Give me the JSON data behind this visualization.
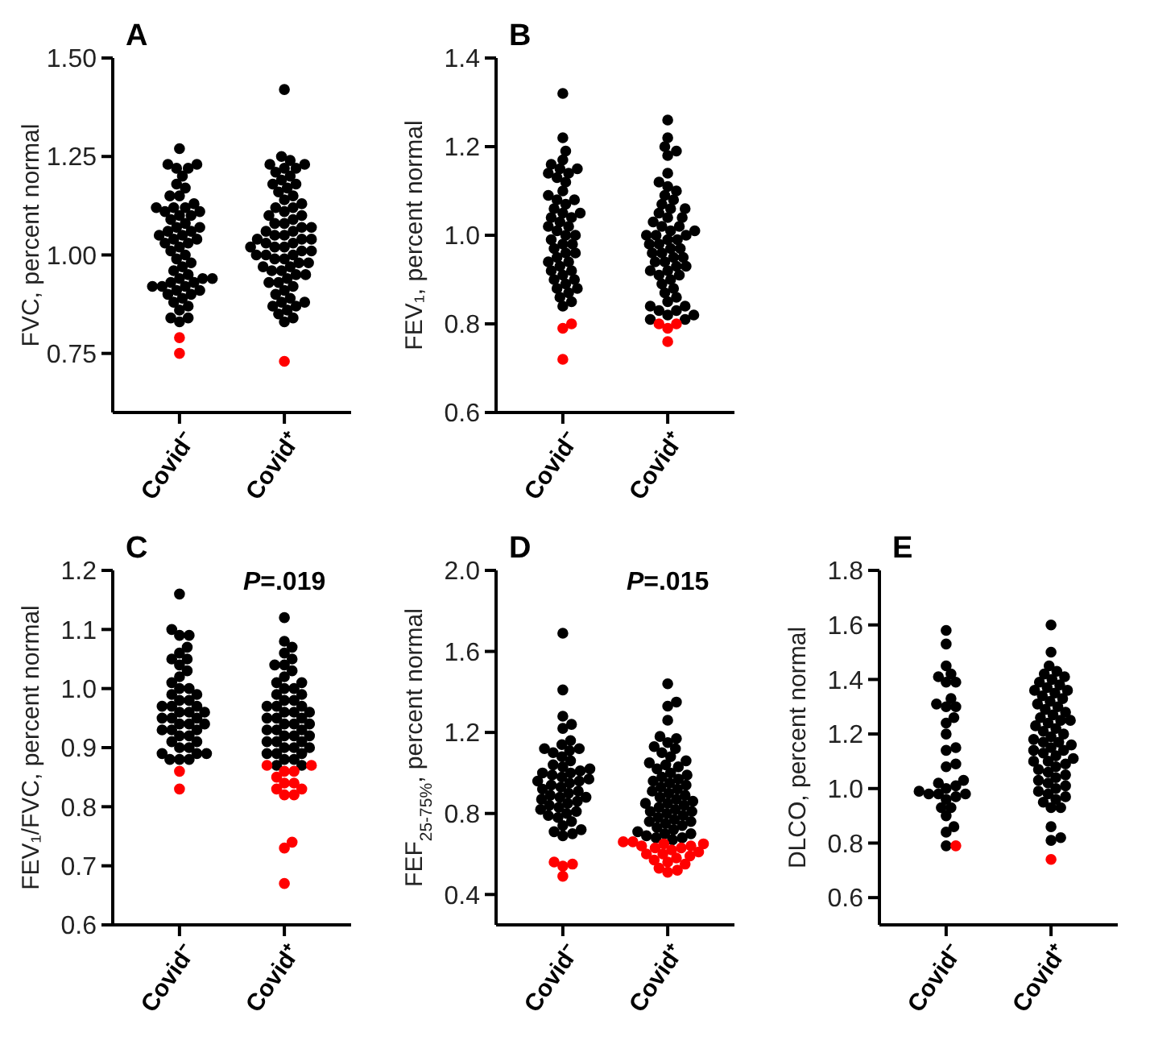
{
  "chart_data": [
    {
      "type": "scatter",
      "title": "A",
      "ylabel": "FVC, percent normal",
      "categories": [
        "Covid⁻",
        "Covid⁺"
      ],
      "ylim": [
        0.6,
        1.5
      ],
      "yticks": [
        {
          "value": 0.75,
          "label": "0.75"
        },
        {
          "value": 1,
          "label": "1.00"
        },
        {
          "value": 1.25,
          "label": "1.25"
        },
        {
          "value": 1.5,
          "label": "1.50"
        }
      ],
      "marker": "circle",
      "series": [
        {
          "color": "#000000",
          "x": [
            "Covid⁻",
            "Covid⁻",
            "Covid⁻",
            "Covid⁻",
            "Covid⁻",
            "Covid⁻",
            "Covid⁻",
            "Covid⁻",
            "Covid⁻",
            "Covid⁻",
            "Covid⁻",
            "Covid⁻",
            "Covid⁻",
            "Covid⁻",
            "Covid⁻",
            "Covid⁻",
            "Covid⁻",
            "Covid⁻",
            "Covid⁻",
            "Covid⁻",
            "Covid⁻",
            "Covid⁻",
            "Covid⁻",
            "Covid⁻",
            "Covid⁻",
            "Covid⁻",
            "Covid⁻",
            "Covid⁻",
            "Covid⁻",
            "Covid⁻",
            "Covid⁻",
            "Covid⁻",
            "Covid⁻",
            "Covid⁻",
            "Covid⁻",
            "Covid⁻",
            "Covid⁻",
            "Covid⁻",
            "Covid⁻",
            "Covid⁻",
            "Covid⁻",
            "Covid⁻",
            "Covid⁻",
            "Covid⁻",
            "Covid⁻",
            "Covid⁻",
            "Covid⁻",
            "Covid⁻",
            "Covid⁻",
            "Covid⁻",
            "Covid⁻",
            "Covid⁻",
            "Covid⁻",
            "Covid⁻",
            "Covid⁻",
            "Covid⁻",
            "Covid⁻"
          ],
          "values": [
            1.27,
            1.23,
            1.23,
            1.22,
            1.22,
            1.2,
            1.18,
            1.17,
            1.15,
            1.15,
            1.13,
            1.12,
            1.12,
            1.12,
            1.11,
            1.11,
            1.1,
            1.1,
            1.09,
            1.08,
            1.07,
            1.07,
            1.06,
            1.06,
            1.05,
            1.05,
            1.04,
            1.04,
            1.03,
            1.03,
            1.02,
            1.01,
            1.0,
            0.99,
            0.98,
            0.97,
            0.96,
            0.95,
            0.94,
            0.94,
            0.94,
            0.93,
            0.93,
            0.92,
            0.92,
            0.92,
            0.91,
            0.91,
            0.9,
            0.9,
            0.89,
            0.88,
            0.87,
            0.86,
            0.84,
            0.84,
            0.83
          ]
        },
        {
          "color": "#000000",
          "x": [
            "Covid⁺",
            "Covid⁺",
            "Covid⁺",
            "Covid⁺",
            "Covid⁺",
            "Covid⁺",
            "Covid⁺",
            "Covid⁺",
            "Covid⁺",
            "Covid⁺",
            "Covid⁺",
            "Covid⁺",
            "Covid⁺",
            "Covid⁺",
            "Covid⁺",
            "Covid⁺",
            "Covid⁺",
            "Covid⁺",
            "Covid⁺",
            "Covid⁺",
            "Covid⁺",
            "Covid⁺",
            "Covid⁺",
            "Covid⁺",
            "Covid⁺",
            "Covid⁺",
            "Covid⁺",
            "Covid⁺",
            "Covid⁺",
            "Covid⁺",
            "Covid⁺",
            "Covid⁺",
            "Covid⁺",
            "Covid⁺",
            "Covid⁺",
            "Covid⁺",
            "Covid⁺",
            "Covid⁺",
            "Covid⁺",
            "Covid⁺",
            "Covid⁺",
            "Covid⁺",
            "Covid⁺",
            "Covid⁺",
            "Covid⁺",
            "Covid⁺",
            "Covid⁺",
            "Covid⁺",
            "Covid⁺",
            "Covid⁺",
            "Covid⁺",
            "Covid⁺",
            "Covid⁺",
            "Covid⁺",
            "Covid⁺",
            "Covid⁺",
            "Covid⁺",
            "Covid⁺",
            "Covid⁺",
            "Covid⁺",
            "Covid⁺",
            "Covid⁺",
            "Covid⁺",
            "Covid⁺",
            "Covid⁺",
            "Covid⁺",
            "Covid⁺",
            "Covid⁺",
            "Covid⁺"
          ],
          "values": [
            1.42,
            1.25,
            1.24,
            1.23,
            1.23,
            1.22,
            1.22,
            1.21,
            1.2,
            1.19,
            1.18,
            1.18,
            1.17,
            1.16,
            1.15,
            1.14,
            1.13,
            1.12,
            1.12,
            1.11,
            1.1,
            1.1,
            1.09,
            1.08,
            1.08,
            1.07,
            1.07,
            1.06,
            1.06,
            1.05,
            1.05,
            1.04,
            1.04,
            1.04,
            1.03,
            1.03,
            1.02,
            1.02,
            1.02,
            1.01,
            1.01,
            1.0,
            1.0,
            1.0,
            0.99,
            0.99,
            0.98,
            0.98,
            0.97,
            0.97,
            0.96,
            0.96,
            0.95,
            0.95,
            0.94,
            0.93,
            0.93,
            0.92,
            0.91,
            0.9,
            0.89,
            0.88,
            0.88,
            0.87,
            0.87,
            0.86,
            0.85,
            0.84,
            0.83
          ]
        },
        {
          "color": "#ff0000",
          "x": [
            "Covid⁻",
            "Covid⁻",
            "Covid⁺"
          ],
          "values": [
            0.79,
            0.75,
            0.73
          ]
        }
      ]
    },
    {
      "type": "scatter",
      "title": "B",
      "ylabel": "FEV₁, percent normal",
      "categories": [
        "Covid⁻",
        "Covid⁺"
      ],
      "ylim": [
        0.6,
        1.4
      ],
      "yticks": [
        {
          "value": 0.6,
          "label": "0.6"
        },
        {
          "value": 0.8,
          "label": "0.8"
        },
        {
          "value": 1,
          "label": "1.0"
        },
        {
          "value": 1.2,
          "label": "1.2"
        },
        {
          "value": 1.4,
          "label": "1.4"
        }
      ],
      "marker": "circle",
      "series": [
        {
          "color": "#000000",
          "x": [
            "Covid⁻",
            "Covid⁻",
            "Covid⁻",
            "Covid⁻",
            "Covid⁻",
            "Covid⁻",
            "Covid⁻",
            "Covid⁻",
            "Covid⁻",
            "Covid⁻",
            "Covid⁻",
            "Covid⁻",
            "Covid⁻",
            "Covid⁻",
            "Covid⁻",
            "Covid⁻",
            "Covid⁻",
            "Covid⁻",
            "Covid⁻",
            "Covid⁻",
            "Covid⁻",
            "Covid⁻",
            "Covid⁻",
            "Covid⁻",
            "Covid⁻",
            "Covid⁻",
            "Covid⁻",
            "Covid⁻",
            "Covid⁻",
            "Covid⁻",
            "Covid⁻",
            "Covid⁻",
            "Covid⁻",
            "Covid⁻",
            "Covid⁻",
            "Covid⁻",
            "Covid⁻",
            "Covid⁻",
            "Covid⁻",
            "Covid⁻",
            "Covid⁻",
            "Covid⁻",
            "Covid⁻",
            "Covid⁻",
            "Covid⁻",
            "Covid⁻",
            "Covid⁻",
            "Covid⁻",
            "Covid⁻"
          ],
          "values": [
            1.32,
            1.22,
            1.19,
            1.17,
            1.16,
            1.15,
            1.15,
            1.14,
            1.14,
            1.13,
            1.12,
            1.1,
            1.09,
            1.08,
            1.08,
            1.07,
            1.06,
            1.05,
            1.05,
            1.04,
            1.04,
            1.03,
            1.02,
            1.02,
            1.01,
            1.0,
            1.0,
            0.99,
            0.98,
            0.98,
            0.97,
            0.96,
            0.96,
            0.95,
            0.94,
            0.94,
            0.93,
            0.92,
            0.92,
            0.91,
            0.9,
            0.9,
            0.89,
            0.88,
            0.88,
            0.87,
            0.86,
            0.85,
            0.84
          ]
        },
        {
          "color": "#000000",
          "x": [
            "Covid⁺",
            "Covid⁺",
            "Covid⁺",
            "Covid⁺",
            "Covid⁺",
            "Covid⁺",
            "Covid⁺",
            "Covid⁺",
            "Covid⁺",
            "Covid⁺",
            "Covid⁺",
            "Covid⁺",
            "Covid⁺",
            "Covid⁺",
            "Covid⁺",
            "Covid⁺",
            "Covid⁺",
            "Covid⁺",
            "Covid⁺",
            "Covid⁺",
            "Covid⁺",
            "Covid⁺",
            "Covid⁺",
            "Covid⁺",
            "Covid⁺",
            "Covid⁺",
            "Covid⁺",
            "Covid⁺",
            "Covid⁺",
            "Covid⁺",
            "Covid⁺",
            "Covid⁺",
            "Covid⁺",
            "Covid⁺",
            "Covid⁺",
            "Covid⁺",
            "Covid⁺",
            "Covid⁺",
            "Covid⁺",
            "Covid⁺",
            "Covid⁺",
            "Covid⁺",
            "Covid⁺",
            "Covid⁺",
            "Covid⁺",
            "Covid⁺",
            "Covid⁺",
            "Covid⁺",
            "Covid⁺",
            "Covid⁺",
            "Covid⁺",
            "Covid⁺",
            "Covid⁺",
            "Covid⁺",
            "Covid⁺",
            "Covid⁺",
            "Covid⁺"
          ],
          "values": [
            1.26,
            1.22,
            1.2,
            1.19,
            1.18,
            1.14,
            1.12,
            1.11,
            1.1,
            1.09,
            1.08,
            1.07,
            1.06,
            1.06,
            1.05,
            1.04,
            1.04,
            1.03,
            1.02,
            1.02,
            1.01,
            1.01,
            1.0,
            1.0,
            1.0,
            0.99,
            0.99,
            0.98,
            0.98,
            0.97,
            0.97,
            0.96,
            0.96,
            0.95,
            0.95,
            0.94,
            0.94,
            0.93,
            0.93,
            0.92,
            0.92,
            0.91,
            0.91,
            0.9,
            0.89,
            0.88,
            0.87,
            0.86,
            0.85,
            0.84,
            0.84,
            0.83,
            0.83,
            0.82,
            0.82,
            0.81,
            0.81
          ]
        },
        {
          "color": "#ff0000",
          "x": [
            "Covid⁻",
            "Covid⁻",
            "Covid⁻",
            "Covid⁺",
            "Covid⁺",
            "Covid⁺",
            "Covid⁺"
          ],
          "values": [
            0.8,
            0.79,
            0.72,
            0.8,
            0.8,
            0.79,
            0.76
          ]
        }
      ]
    },
    {
      "type": "scatter",
      "title": "C",
      "ylabel": "FEV₁/FVC, percent normal",
      "categories": [
        "Covid⁻",
        "Covid⁺"
      ],
      "ylim": [
        0.6,
        1.2
      ],
      "yticks": [
        {
          "value": 0.6,
          "label": "0.6"
        },
        {
          "value": 0.7,
          "label": "0.7"
        },
        {
          "value": 0.8,
          "label": "0.8"
        },
        {
          "value": 0.9,
          "label": "0.9"
        },
        {
          "value": 1,
          "label": "1.0"
        },
        {
          "value": 1.1,
          "label": "1.1"
        },
        {
          "value": 1.2,
          "label": "1.2"
        }
      ],
      "marker": "circle",
      "annotations": [
        "P=.019"
      ],
      "series": [
        {
          "color": "#000000",
          "x": [
            "Covid⁻",
            "Covid⁻",
            "Covid⁻",
            "Covid⁻",
            "Covid⁻",
            "Covid⁻",
            "Covid⁻",
            "Covid⁻",
            "Covid⁻",
            "Covid⁻",
            "Covid⁻",
            "Covid⁻",
            "Covid⁻",
            "Covid⁻",
            "Covid⁻",
            "Covid⁻",
            "Covid⁻",
            "Covid⁻",
            "Covid⁻",
            "Covid⁻",
            "Covid⁻",
            "Covid⁻",
            "Covid⁻",
            "Covid⁻",
            "Covid⁻",
            "Covid⁻",
            "Covid⁻",
            "Covid⁻",
            "Covid⁻",
            "Covid⁻",
            "Covid⁻",
            "Covid⁻",
            "Covid⁻",
            "Covid⁻",
            "Covid⁻",
            "Covid⁻",
            "Covid⁻",
            "Covid⁻",
            "Covid⁻",
            "Covid⁻",
            "Covid⁻",
            "Covid⁻",
            "Covid⁻",
            "Covid⁻",
            "Covid⁻"
          ],
          "values": [
            1.16,
            1.1,
            1.09,
            1.09,
            1.07,
            1.06,
            1.05,
            1.05,
            1.04,
            1.03,
            1.02,
            1.01,
            1.0,
            1.0,
            0.99,
            0.99,
            0.98,
            0.98,
            0.97,
            0.97,
            0.97,
            0.96,
            0.96,
            0.96,
            0.95,
            0.95,
            0.95,
            0.94,
            0.94,
            0.94,
            0.93,
            0.93,
            0.93,
            0.92,
            0.92,
            0.91,
            0.91,
            0.9,
            0.9,
            0.89,
            0.89,
            0.89,
            0.88,
            0.88,
            0.88
          ]
        },
        {
          "color": "#000000",
          "x": [
            "Covid⁺",
            "Covid⁺",
            "Covid⁺",
            "Covid⁺",
            "Covid⁺",
            "Covid⁺",
            "Covid⁺",
            "Covid⁺",
            "Covid⁺",
            "Covid⁺",
            "Covid⁺",
            "Covid⁺",
            "Covid⁺",
            "Covid⁺",
            "Covid⁺",
            "Covid⁺",
            "Covid⁺",
            "Covid⁺",
            "Covid⁺",
            "Covid⁺",
            "Covid⁺",
            "Covid⁺",
            "Covid⁺",
            "Covid⁺",
            "Covid⁺",
            "Covid⁺",
            "Covid⁺",
            "Covid⁺",
            "Covid⁺",
            "Covid⁺",
            "Covid⁺",
            "Covid⁺",
            "Covid⁺",
            "Covid⁺",
            "Covid⁺",
            "Covid⁺",
            "Covid⁺",
            "Covid⁺",
            "Covid⁺",
            "Covid⁺",
            "Covid⁺",
            "Covid⁺",
            "Covid⁺",
            "Covid⁺",
            "Covid⁺",
            "Covid⁺",
            "Covid⁺",
            "Covid⁺"
          ],
          "values": [
            1.12,
            1.08,
            1.07,
            1.06,
            1.05,
            1.04,
            1.04,
            1.03,
            1.02,
            1.01,
            1.01,
            1.0,
            1.0,
            0.99,
            0.99,
            0.98,
            0.98,
            0.97,
            0.97,
            0.97,
            0.96,
            0.96,
            0.96,
            0.95,
            0.95,
            0.95,
            0.94,
            0.94,
            0.94,
            0.93,
            0.93,
            0.93,
            0.92,
            0.92,
            0.92,
            0.91,
            0.91,
            0.91,
            0.9,
            0.9,
            0.9,
            0.89,
            0.89,
            0.89,
            0.88,
            0.88,
            0.87,
            0.87
          ]
        },
        {
          "color": "#ff0000",
          "x": [
            "Covid⁻",
            "Covid⁻",
            "Covid⁺",
            "Covid⁺",
            "Covid⁺",
            "Covid⁺",
            "Covid⁺",
            "Covid⁺",
            "Covid⁺",
            "Covid⁺",
            "Covid⁺",
            "Covid⁺",
            "Covid⁺",
            "Covid⁺",
            "Covid⁺",
            "Covid⁺"
          ],
          "values": [
            0.86,
            0.83,
            0.87,
            0.87,
            0.86,
            0.86,
            0.85,
            0.84,
            0.84,
            0.83,
            0.83,
            0.82,
            0.82,
            0.74,
            0.73,
            0.67
          ]
        }
      ]
    },
    {
      "type": "scatter",
      "title": "D",
      "ylabel": "FEF$_{25-75%}$, percent normal",
      "categories": [
        "Covid⁻",
        "Covid⁺"
      ],
      "ylim": [
        0.25,
        2.0
      ],
      "yticks": [
        {
          "value": 0.4,
          "label": "0.4"
        },
        {
          "value": 0.8,
          "label": "0.8"
        },
        {
          "value": 1.2,
          "label": "1.2"
        },
        {
          "value": 1.6,
          "label": "1.6"
        },
        {
          "value": 2,
          "label": "2.0"
        }
      ],
      "marker": "circle",
      "annotations": [
        "P=.015"
      ],
      "series": [
        {
          "color": "#000000",
          "x": [
            "Covid⁻",
            "Covid⁻",
            "Covid⁻",
            "Covid⁻",
            "Covid⁻",
            "Covid⁻",
            "Covid⁻",
            "Covid⁻",
            "Covid⁻",
            "Covid⁻",
            "Covid⁻",
            "Covid⁻",
            "Covid⁻",
            "Covid⁻",
            "Covid⁻",
            "Covid⁻",
            "Covid⁻",
            "Covid⁻",
            "Covid⁻",
            "Covid⁻",
            "Covid⁻",
            "Covid⁻",
            "Covid⁻",
            "Covid⁻",
            "Covid⁻",
            "Covid⁻",
            "Covid⁻",
            "Covid⁻",
            "Covid⁻",
            "Covid⁻",
            "Covid⁻",
            "Covid⁻",
            "Covid⁻",
            "Covid⁻",
            "Covid⁻",
            "Covid⁻",
            "Covid⁻",
            "Covid⁻",
            "Covid⁻",
            "Covid⁻",
            "Covid⁻",
            "Covid⁻",
            "Covid⁻",
            "Covid⁻",
            "Covid⁻",
            "Covid⁻",
            "Covid⁻",
            "Covid⁻",
            "Covid⁻"
          ],
          "values": [
            1.69,
            1.41,
            1.28,
            1.24,
            1.22,
            1.16,
            1.14,
            1.12,
            1.12,
            1.11,
            1.1,
            1.08,
            1.06,
            1.04,
            1.03,
            1.02,
            1.01,
            1.0,
            1.0,
            0.99,
            0.98,
            0.97,
            0.96,
            0.96,
            0.95,
            0.94,
            0.93,
            0.92,
            0.91,
            0.9,
            0.89,
            0.88,
            0.88,
            0.87,
            0.86,
            0.85,
            0.84,
            0.83,
            0.82,
            0.81,
            0.8,
            0.79,
            0.78,
            0.76,
            0.74,
            0.72,
            0.71,
            0.7,
            0.69
          ]
        },
        {
          "color": "#000000",
          "x": [
            "Covid⁺",
            "Covid⁺",
            "Covid⁺",
            "Covid⁺",
            "Covid⁺",
            "Covid⁺",
            "Covid⁺",
            "Covid⁺",
            "Covid⁺",
            "Covid⁺",
            "Covid⁺",
            "Covid⁺",
            "Covid⁺",
            "Covid⁺",
            "Covid⁺",
            "Covid⁺",
            "Covid⁺",
            "Covid⁺",
            "Covid⁺",
            "Covid⁺",
            "Covid⁺",
            "Covid⁺",
            "Covid⁺",
            "Covid⁺",
            "Covid⁺",
            "Covid⁺",
            "Covid⁺",
            "Covid⁺",
            "Covid⁺",
            "Covid⁺",
            "Covid⁺",
            "Covid⁺",
            "Covid⁺",
            "Covid⁺",
            "Covid⁺",
            "Covid⁺",
            "Covid⁺",
            "Covid⁺",
            "Covid⁺",
            "Covid⁺",
            "Covid⁺",
            "Covid⁺",
            "Covid⁺",
            "Covid⁺",
            "Covid⁺",
            "Covid⁺",
            "Covid⁺",
            "Covid⁺",
            "Covid⁺",
            "Covid⁺",
            "Covid⁺",
            "Covid⁺",
            "Covid⁺",
            "Covid⁺",
            "Covid⁺"
          ],
          "values": [
            1.44,
            1.35,
            1.33,
            1.26,
            1.18,
            1.17,
            1.15,
            1.13,
            1.12,
            1.1,
            1.08,
            1.06,
            1.05,
            1.04,
            1.03,
            1.02,
            1.0,
            0.99,
            0.98,
            0.97,
            0.96,
            0.95,
            0.94,
            0.93,
            0.92,
            0.91,
            0.9,
            0.89,
            0.88,
            0.87,
            0.86,
            0.85,
            0.85,
            0.84,
            0.83,
            0.82,
            0.81,
            0.81,
            0.8,
            0.79,
            0.78,
            0.77,
            0.76,
            0.76,
            0.75,
            0.74,
            0.73,
            0.72,
            0.71,
            0.7,
            0.7,
            0.69,
            0.68,
            0.68,
            0.67
          ]
        },
        {
          "color": "#ff0000",
          "x": [
            "Covid⁻",
            "Covid⁻",
            "Covid⁻",
            "Covid⁻",
            "Covid⁺",
            "Covid⁺",
            "Covid⁺",
            "Covid⁺",
            "Covid⁺",
            "Covid⁺",
            "Covid⁺",
            "Covid⁺",
            "Covid⁺",
            "Covid⁺",
            "Covid⁺",
            "Covid⁺",
            "Covid⁺",
            "Covid⁺",
            "Covid⁺",
            "Covid⁺",
            "Covid⁺",
            "Covid⁺",
            "Covid⁺",
            "Covid⁺"
          ],
          "values": [
            0.56,
            0.55,
            0.54,
            0.49,
            0.66,
            0.66,
            0.65,
            0.65,
            0.64,
            0.64,
            0.63,
            0.63,
            0.62,
            0.61,
            0.6,
            0.6,
            0.59,
            0.58,
            0.57,
            0.56,
            0.55,
            0.53,
            0.52,
            0.51
          ]
        }
      ]
    },
    {
      "type": "scatter",
      "title": "E",
      "ylabel": "DLCO, percent normal",
      "categories": [
        "Covid⁻",
        "Covid⁺"
      ],
      "ylim": [
        0.5,
        1.8
      ],
      "yticks": [
        {
          "value": 0.6,
          "label": "0.6"
        },
        {
          "value": 0.8,
          "label": "0.8"
        },
        {
          "value": 1,
          "label": "1.0"
        },
        {
          "value": 1.2,
          "label": "1.2"
        },
        {
          "value": 1.4,
          "label": "1.4"
        },
        {
          "value": 1.6,
          "label": "1.6"
        },
        {
          "value": 1.8,
          "label": "1.8"
        }
      ],
      "marker": "circle",
      "series": [
        {
          "color": "#000000",
          "x": [
            "Covid⁻",
            "Covid⁻",
            "Covid⁻",
            "Covid⁻",
            "Covid⁻",
            "Covid⁻",
            "Covid⁻",
            "Covid⁻",
            "Covid⁻",
            "Covid⁻",
            "Covid⁻",
            "Covid⁻",
            "Covid⁻",
            "Covid⁻",
            "Covid⁻",
            "Covid⁻",
            "Covid⁻",
            "Covid⁻",
            "Covid⁻",
            "Covid⁻",
            "Covid⁻",
            "Covid⁻",
            "Covid⁻",
            "Covid⁻",
            "Covid⁻",
            "Covid⁻",
            "Covid⁻",
            "Covid⁻",
            "Covid⁻",
            "Covid⁻",
            "Covid⁻",
            "Covid⁻",
            "Covid⁻",
            "Covid⁻"
          ],
          "values": [
            1.58,
            1.53,
            1.45,
            1.42,
            1.41,
            1.39,
            1.39,
            1.33,
            1.31,
            1.3,
            1.3,
            1.26,
            1.24,
            1.2,
            1.15,
            1.14,
            1.09,
            1.08,
            1.03,
            1.02,
            1.01,
            1.0,
            0.99,
            0.98,
            0.98,
            0.98,
            0.97,
            0.96,
            0.93,
            0.93,
            0.9,
            0.86,
            0.84,
            0.79
          ]
        },
        {
          "color": "#000000",
          "x": [
            "Covid⁺",
            "Covid⁺",
            "Covid⁺",
            "Covid⁺",
            "Covid⁺",
            "Covid⁺",
            "Covid⁺",
            "Covid⁺",
            "Covid⁺",
            "Covid⁺",
            "Covid⁺",
            "Covid⁺",
            "Covid⁺",
            "Covid⁺",
            "Covid⁺",
            "Covid⁺",
            "Covid⁺",
            "Covid⁺",
            "Covid⁺",
            "Covid⁺",
            "Covid⁺",
            "Covid⁺",
            "Covid⁺",
            "Covid⁺",
            "Covid⁺",
            "Covid⁺",
            "Covid⁺",
            "Covid⁺",
            "Covid⁺",
            "Covid⁺",
            "Covid⁺",
            "Covid⁺",
            "Covid⁺",
            "Covid⁺",
            "Covid⁺",
            "Covid⁺",
            "Covid⁺",
            "Covid⁺",
            "Covid⁺",
            "Covid⁺",
            "Covid⁺",
            "Covid⁺",
            "Covid⁺",
            "Covid⁺",
            "Covid⁺",
            "Covid⁺",
            "Covid⁺",
            "Covid⁺",
            "Covid⁺",
            "Covid⁺",
            "Covid⁺",
            "Covid⁺",
            "Covid⁺",
            "Covid⁺",
            "Covid⁺",
            "Covid⁺",
            "Covid⁺",
            "Covid⁺",
            "Covid⁺",
            "Covid⁺",
            "Covid⁺",
            "Covid⁺"
          ],
          "values": [
            1.6,
            1.5,
            1.45,
            1.43,
            1.42,
            1.41,
            1.4,
            1.39,
            1.38,
            1.37,
            1.36,
            1.36,
            1.35,
            1.34,
            1.33,
            1.32,
            1.31,
            1.3,
            1.29,
            1.28,
            1.27,
            1.26,
            1.25,
            1.25,
            1.24,
            1.23,
            1.22,
            1.21,
            1.2,
            1.19,
            1.18,
            1.17,
            1.17,
            1.16,
            1.15,
            1.14,
            1.14,
            1.13,
            1.12,
            1.11,
            1.1,
            1.1,
            1.09,
            1.08,
            1.07,
            1.06,
            1.05,
            1.04,
            1.03,
            1.02,
            1.01,
            1.0,
            0.99,
            0.98,
            0.97,
            0.96,
            0.95,
            0.93,
            0.93,
            0.86,
            0.82,
            0.81
          ]
        },
        {
          "color": "#ff0000",
          "x": [
            "Covid⁻",
            "Covid⁺"
          ],
          "values": [
            0.79,
            0.74
          ]
        }
      ]
    }
  ]
}
